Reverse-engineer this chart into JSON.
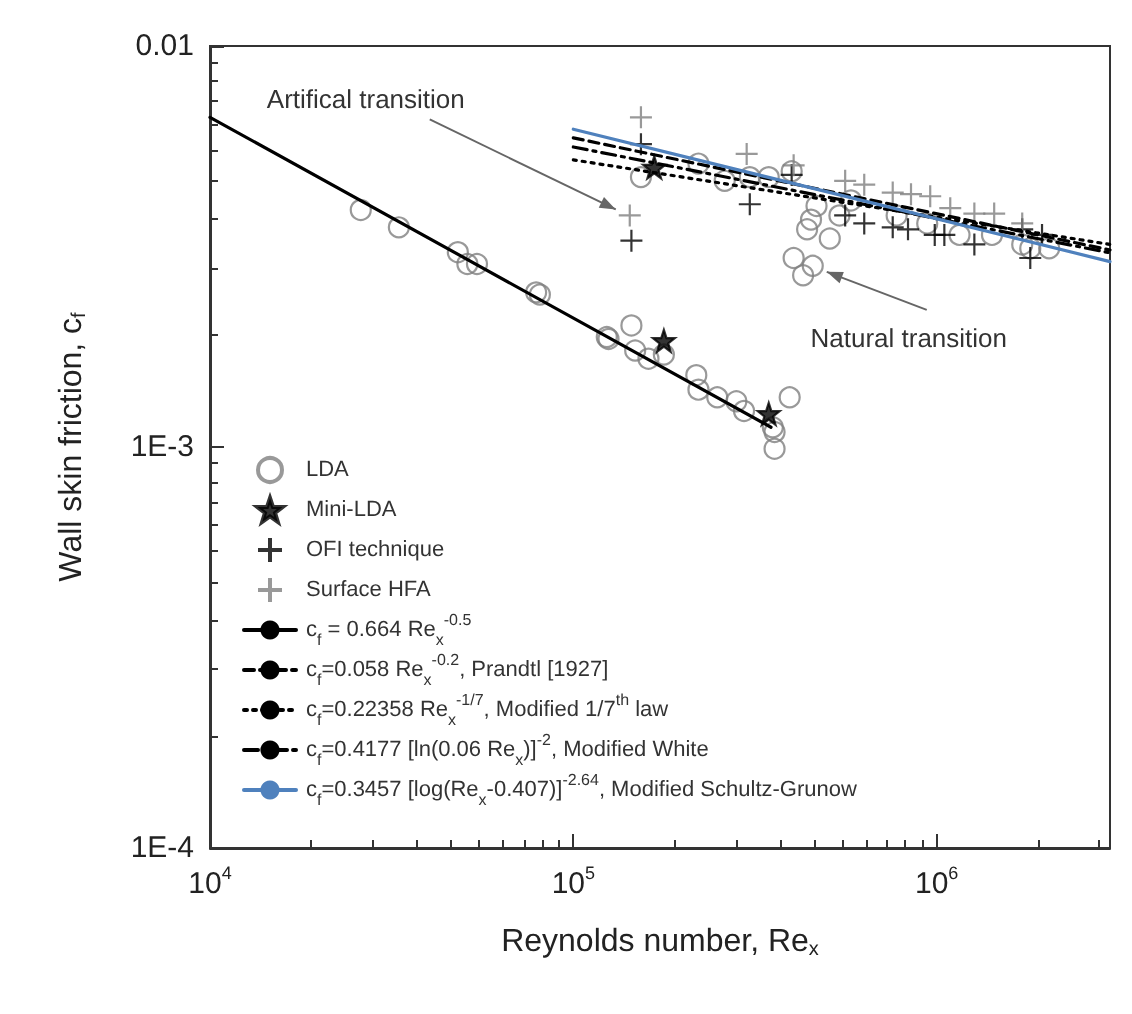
{
  "chart_data": {
    "type": "scatter",
    "xlabel": "Reynolds number, Re$_{x}$",
    "ylabel": "Wall skin friction, c$_{f}$",
    "log": "xy",
    "xlim": [
      10000,
      3000000
    ],
    "ylim": [
      0.0001,
      0.01
    ],
    "xticks": [
      {
        "value": 10000,
        "label": "10$^{4}$"
      },
      {
        "value": 100000,
        "label": "10$^{5}$"
      },
      {
        "value": 1000000,
        "label": "10$^{6}$"
      }
    ],
    "yticks": [
      {
        "value": 0.0001,
        "label": "1E-4"
      },
      {
        "value": 0.001,
        "label": "1E-3"
      },
      {
        "value": 0.01,
        "label": "0.01"
      }
    ],
    "legend": "bottom left",
    "annotations": [
      {
        "text": "Artifical transition",
        "x": 143000,
        "y": 0.00378
      },
      {
        "text": "Natural transition",
        "x": 456000,
        "y": 0.00283
      }
    ],
    "series": [
      {
        "name": "LDA",
        "marker": "circle",
        "color": "#808080",
        "x": [
          26000,
          33100,
          48100,
          51100,
          54300,
          79000,
          80900,
          123600,
          125000,
          144500,
          148000,
          161000,
          177500,
          218000,
          221000,
          249000,
          281000,
          295000,
          354000,
          358000,
          358000,
          394000,
          153500,
          221000,
          261000,
          306000,
          345000,
          399000,
          467000,
          451000,
          440000,
          508000,
          404000,
          456000,
          429000,
          540000,
          581000,
          776000,
          942000,
          1156000,
          1420000,
          1720000,
          1810000,
          2040000
        ],
        "values": [
          0.0039,
          0.00353,
          0.00306,
          0.00286,
          0.00286,
          0.00243,
          0.0024,
          0.00188,
          0.00186,
          0.00201,
          0.00174,
          0.00166,
          0.0017,
          0.00151,
          0.00139,
          0.00133,
          0.0013,
          0.00123,
          0.00112,
          0.00109,
          0.00099,
          0.00133,
          0.00471,
          0.00509,
          0.00461,
          0.00471,
          0.00471,
          0.00487,
          0.00399,
          0.00369,
          0.00349,
          0.00331,
          0.00296,
          0.00283,
          0.00268,
          0.00378,
          0.00412,
          0.00378,
          0.00361,
          0.00338,
          0.00338,
          0.0032,
          0.00313,
          0.00313
        ]
      },
      {
        "name": "Mini-LDA",
        "marker": "star",
        "color": "#000000",
        "x": [
          167000,
          177500,
          345000
        ],
        "values": [
          0.00498,
          0.00184,
          0.00121
        ]
      },
      {
        "name": "OFI technique",
        "marker": "cross",
        "color": "#000000",
        "x": [
          153500,
          144500,
          306000,
          399000,
          560000,
          632000,
          757000,
          834000,
          988000,
          1050000,
          1270000,
          1720000,
          1810000,
          1950000
        ],
        "values": [
          0.00569,
          0.00327,
          0.00403,
          0.00477,
          0.00378,
          0.00361,
          0.00353,
          0.00349,
          0.00338,
          0.00338,
          0.0032,
          0.00349,
          0.00296,
          0.00338
        ]
      },
      {
        "name": "Surface HFA",
        "marker": "cross",
        "color": "#808080",
        "x": [
          153500,
          143000,
          300000,
          404000,
          560000,
          632000,
          757000,
          850000,
          960000,
          1090000,
          1270000,
          1440000,
          1720000
        ],
        "values": [
          0.00664,
          0.00378,
          0.00538,
          0.00504,
          0.00461,
          0.00451,
          0.00431,
          0.00427,
          0.00422,
          0.00394,
          0.00382,
          0.00382,
          0.00361
        ]
      },
      {
        "name": "c$_{f}$ = 0.664 Re$_{x}$$^{-0.5}$",
        "type": "line",
        "line_style": "solid",
        "color": "#000000",
        "x": [
          10000,
          350000
        ],
        "values": [
          0.00664,
          0.00112
        ]
      },
      {
        "name": "c$_{f}$=0.058 Re$_{x}$$^{-0.2}$, Prandtl [1927]",
        "type": "line",
        "line_style": "dashed",
        "color": "#000000",
        "x": [
          100000,
          3000000
        ],
        "values": [
          0.0059,
          0.0031
        ]
      },
      {
        "name": "c$_{f}$=0.22358 Re$_{x}$$^{-1/7}$, Modified 1/7$^{th}$ law",
        "type": "line",
        "line_style": "dotted",
        "color": "#000000",
        "x": [
          100000,
          3000000
        ],
        "values": [
          0.0052,
          0.0032
        ]
      },
      {
        "name": "c$_{f}$=0.4177 [ln(0.06 Re$_{x}$)]$^{-2}$, Modified White",
        "type": "line",
        "line_style": "dashdot",
        "color": "#000000",
        "x": [
          100000,
          3000000
        ],
        "values": [
          0.0056,
          0.00305
        ]
      },
      {
        "name": "c$_{f}$=0.3457 [log(Re$_{x}$-0.407)]$^{-2.64}$, Modified Schultz-Grunow",
        "type": "line",
        "line_style": "solid",
        "color": "#4f81bd",
        "x": [
          100000,
          3000000
        ],
        "values": [
          0.0062,
          0.0029
        ]
      }
    ]
  }
}
